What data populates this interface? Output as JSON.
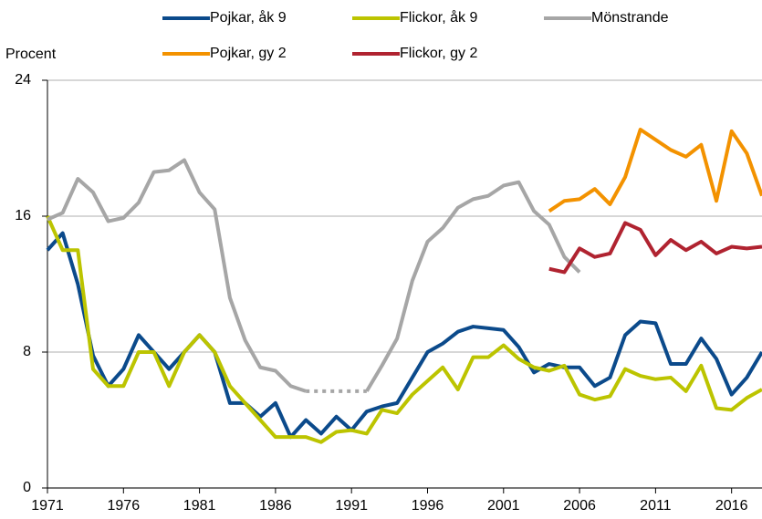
{
  "chart_data": {
    "type": "line",
    "y_label": "Procent",
    "x": [
      1971,
      1972,
      1973,
      1974,
      1975,
      1976,
      1977,
      1978,
      1979,
      1980,
      1981,
      1982,
      1983,
      1984,
      1985,
      1986,
      1987,
      1988,
      1989,
      1990,
      1991,
      1992,
      1993,
      1994,
      1995,
      1996,
      1997,
      1998,
      1999,
      2000,
      2001,
      2002,
      2003,
      2004,
      2005,
      2006,
      2007,
      2008,
      2009,
      2010,
      2011,
      2012,
      2013,
      2014,
      2015,
      2016,
      2017,
      2018
    ],
    "xlim": [
      1971,
      2018
    ],
    "xticks": [
      1971,
      1976,
      1981,
      1986,
      1991,
      1996,
      2001,
      2006,
      2011,
      2016
    ],
    "ylim": [
      0,
      24
    ],
    "yticks": [
      0,
      8,
      16,
      24
    ],
    "grid": true,
    "series": [
      {
        "name": "Pojkar, åk 9",
        "color": "#0b4a8b",
        "values": [
          14,
          15,
          12,
          7.8,
          6,
          7,
          9,
          8,
          7,
          8,
          9,
          8,
          5,
          5,
          4.2,
          5,
          3,
          4,
          3.2,
          4.2,
          3.4,
          4.5,
          4.8,
          5,
          6.5,
          8,
          8.5,
          9.2,
          9.5,
          9.4,
          9.3,
          8.3,
          6.8,
          7.3,
          7.1,
          7.1,
          6,
          6.5,
          9,
          9.8,
          9.7,
          7.3,
          7.3,
          8.8,
          7.6,
          5.5,
          6.5,
          8
        ]
      },
      {
        "name": "Flickor, åk 9",
        "color": "#bcc400",
        "values": [
          16,
          14,
          14,
          7,
          6,
          6,
          8,
          8,
          6,
          8,
          9,
          8,
          6,
          5,
          4,
          3,
          3,
          3,
          2.7,
          3.3,
          3.4,
          3.2,
          4.6,
          4.4,
          5.5,
          6.3,
          7.1,
          5.8,
          7.7,
          7.7,
          8.4,
          7.6,
          7.1,
          6.9,
          7.2,
          5.5,
          5.2,
          5.4,
          7,
          6.6,
          6.4,
          6.5,
          5.7,
          7.2,
          4.7,
          4.6,
          5.3,
          5.8
        ]
      },
      {
        "name": "Mönstrande",
        "color": "#a6a6a6",
        "values": [
          15.8,
          16.2,
          18.2,
          17.4,
          15.7,
          15.9,
          16.8,
          18.6,
          18.7,
          19.3,
          17.4,
          16.4,
          11.2,
          8.7,
          7.1,
          6.9,
          6,
          5.7,
          null,
          null,
          null,
          5.7,
          7.2,
          8.8,
          12.2,
          14.5,
          15.3,
          16.5,
          17,
          17.2,
          17.8,
          18,
          16.3,
          15.5,
          13.6,
          12.7,
          null,
          null,
          null,
          null,
          null,
          null,
          null,
          null,
          null,
          null,
          null,
          null
        ]
      },
      {
        "name": "Pojkar, gy 2",
        "color": "#f39200",
        "values": [
          null,
          null,
          null,
          null,
          null,
          null,
          null,
          null,
          null,
          null,
          null,
          null,
          null,
          null,
          null,
          null,
          null,
          null,
          null,
          null,
          null,
          null,
          null,
          null,
          null,
          null,
          null,
          null,
          null,
          null,
          null,
          null,
          null,
          16.3,
          16.9,
          17,
          17.6,
          16.7,
          18.3,
          21.1,
          20.5,
          19.9,
          19.5,
          20.2,
          16.9,
          21,
          19.7,
          17.2
        ]
      },
      {
        "name": "Flickor, gy 2",
        "color": "#b02330",
        "values": [
          null,
          null,
          null,
          null,
          null,
          null,
          null,
          null,
          null,
          null,
          null,
          null,
          null,
          null,
          null,
          null,
          null,
          null,
          null,
          null,
          null,
          null,
          null,
          null,
          null,
          null,
          null,
          null,
          null,
          null,
          null,
          null,
          null,
          12.9,
          12.7,
          14.1,
          13.6,
          13.8,
          15.6,
          15.2,
          13.7,
          14.6,
          14,
          14.5,
          13.8,
          14.2,
          14.1,
          14.2
        ]
      }
    ]
  }
}
